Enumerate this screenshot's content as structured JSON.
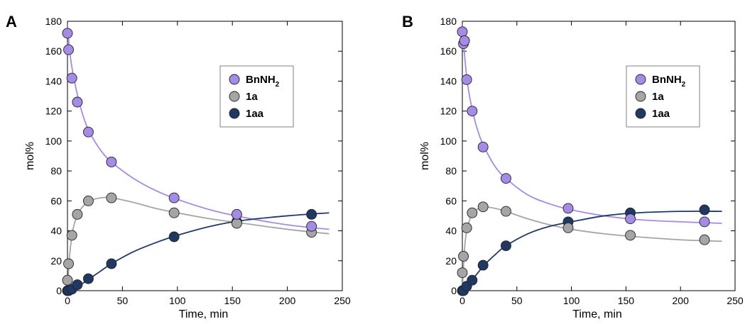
{
  "chart_data": [
    {
      "type": "scatter",
      "panel_label": "A",
      "xlabel": "Time, min",
      "ylabel": "mol%",
      "xlim": [
        0,
        250
      ],
      "ylim": [
        0,
        180
      ],
      "x_ticks": [
        "0",
        "50",
        "100",
        "150",
        "200",
        "250"
      ],
      "y_ticks": [
        "0",
        "20",
        "40",
        "60",
        "80",
        "100",
        "120",
        "140",
        "160",
        "180"
      ],
      "grid": false,
      "legend_position": "top-right",
      "series": [
        {
          "name": "BnNH2",
          "label_main": "BnNH",
          "label_sub": "2",
          "color": "#a48be8",
          "points": [
            [
              0,
              172
            ],
            [
              1,
              161
            ],
            [
              4,
              142
            ],
            [
              9,
              126
            ],
            [
              19,
              106
            ],
            [
              40,
              86
            ],
            [
              97,
              62
            ],
            [
              154,
              51
            ],
            [
              222,
              43
            ]
          ],
          "fit": [
            [
              0,
              178
            ],
            [
              2,
              160
            ],
            [
              5,
              145
            ],
            [
              10,
              128
            ],
            [
              15,
              115
            ],
            [
              20,
              106
            ],
            [
              30,
              94
            ],
            [
              40,
              86
            ],
            [
              60,
              75
            ],
            [
              80,
              67
            ],
            [
              100,
              61
            ],
            [
              130,
              54
            ],
            [
              160,
              49
            ],
            [
              200,
              44
            ],
            [
              238,
              41
            ]
          ]
        },
        {
          "name": "1a",
          "label_main": "1a",
          "label_sub": "",
          "color": "#a5a5a5",
          "points": [
            [
              0,
              7
            ],
            [
              1,
              18
            ],
            [
              4,
              37
            ],
            [
              9,
              51
            ],
            [
              19,
              60
            ],
            [
              40,
              62
            ],
            [
              97,
              52
            ],
            [
              154,
              45
            ],
            [
              222,
              39
            ]
          ],
          "fit": [
            [
              0,
              0
            ],
            [
              2,
              24
            ],
            [
              4,
              36
            ],
            [
              6,
              44
            ],
            [
              10,
              52
            ],
            [
              15,
              57
            ],
            [
              20,
              60
            ],
            [
              30,
              62
            ],
            [
              40,
              62
            ],
            [
              60,
              59
            ],
            [
              80,
              55
            ],
            [
              100,
              52
            ],
            [
              130,
              48
            ],
            [
              160,
              45
            ],
            [
              200,
              41
            ],
            [
              238,
              38
            ]
          ]
        },
        {
          "name": "1aa",
          "label_main": "1aa",
          "label_sub": "",
          "color": "#1f3864",
          "points": [
            [
              0,
              0
            ],
            [
              1,
              0
            ],
            [
              4,
              1
            ],
            [
              9,
              4
            ],
            [
              19,
              8
            ],
            [
              40,
              18
            ],
            [
              97,
              36
            ],
            [
              154,
              46
            ],
            [
              222,
              51
            ]
          ],
          "fit": [
            [
              0,
              0
            ],
            [
              5,
              1
            ],
            [
              10,
              3
            ],
            [
              20,
              8
            ],
            [
              30,
              13
            ],
            [
              40,
              18
            ],
            [
              60,
              26
            ],
            [
              80,
              32
            ],
            [
              100,
              37
            ],
            [
              130,
              43
            ],
            [
              160,
              47
            ],
            [
              200,
              50
            ],
            [
              238,
              52
            ]
          ]
        }
      ]
    },
    {
      "type": "scatter",
      "panel_label": "B",
      "xlabel": "Time, min",
      "ylabel": "mol%",
      "xlim": [
        0,
        250
      ],
      "ylim": [
        0,
        180
      ],
      "x_ticks": [
        "0",
        "50",
        "100",
        "150",
        "200",
        "250"
      ],
      "y_ticks": [
        "0",
        "20",
        "40",
        "60",
        "80",
        "100",
        "120",
        "140",
        "160",
        "180"
      ],
      "grid": false,
      "legend_position": "top-right",
      "series": [
        {
          "name": "BnNH2",
          "label_main": "BnNH",
          "label_sub": "2",
          "color": "#a48be8",
          "points": [
            [
              0,
              173
            ],
            [
              1,
              165
            ],
            [
              2,
              167
            ],
            [
              4,
              141
            ],
            [
              9,
              120
            ],
            [
              19,
              96
            ],
            [
              40,
              75
            ],
            [
              97,
              55
            ],
            [
              154,
              48
            ],
            [
              222,
              46
            ]
          ],
          "fit": [
            [
              0,
              178
            ],
            [
              2,
              158
            ],
            [
              5,
              137
            ],
            [
              10,
              118
            ],
            [
              15,
              105
            ],
            [
              20,
              96
            ],
            [
              30,
              83
            ],
            [
              40,
              75
            ],
            [
              60,
              64
            ],
            [
              80,
              58
            ],
            [
              100,
              54
            ],
            [
              130,
              50
            ],
            [
              160,
              47.5
            ],
            [
              200,
              46
            ],
            [
              238,
              45
            ]
          ]
        },
        {
          "name": "1a",
          "label_main": "1a",
          "label_sub": "",
          "color": "#a5a5a5",
          "points": [
            [
              0,
              12
            ],
            [
              1,
              23
            ],
            [
              4,
              42
            ],
            [
              9,
              52
            ],
            [
              19,
              56
            ],
            [
              40,
              53
            ],
            [
              97,
              42
            ],
            [
              154,
              37
            ],
            [
              222,
              34
            ]
          ],
          "fit": [
            [
              0,
              0
            ],
            [
              2,
              28
            ],
            [
              4,
              40
            ],
            [
              7,
              48
            ],
            [
              10,
              52
            ],
            [
              15,
              55
            ],
            [
              20,
              56
            ],
            [
              30,
              55
            ],
            [
              40,
              53
            ],
            [
              60,
              48
            ],
            [
              80,
              44
            ],
            [
              100,
              41
            ],
            [
              130,
              38
            ],
            [
              160,
              36
            ],
            [
              200,
              34
            ],
            [
              238,
              33
            ]
          ]
        },
        {
          "name": "1aa",
          "label_main": "1aa",
          "label_sub": "",
          "color": "#1f3864",
          "points": [
            [
              0,
              0
            ],
            [
              1,
              0
            ],
            [
              4,
              3
            ],
            [
              9,
              7
            ],
            [
              19,
              17
            ],
            [
              40,
              30
            ],
            [
              97,
              46
            ],
            [
              154,
              52
            ],
            [
              222,
              54
            ]
          ],
          "fit": [
            [
              0,
              0
            ],
            [
              5,
              3
            ],
            [
              10,
              8
            ],
            [
              20,
              17
            ],
            [
              30,
              24
            ],
            [
              40,
              30
            ],
            [
              60,
              38
            ],
            [
              80,
              43
            ],
            [
              100,
              46
            ],
            [
              130,
              50
            ],
            [
              160,
              52
            ],
            [
              200,
              53
            ],
            [
              238,
              53
            ]
          ]
        }
      ]
    }
  ]
}
